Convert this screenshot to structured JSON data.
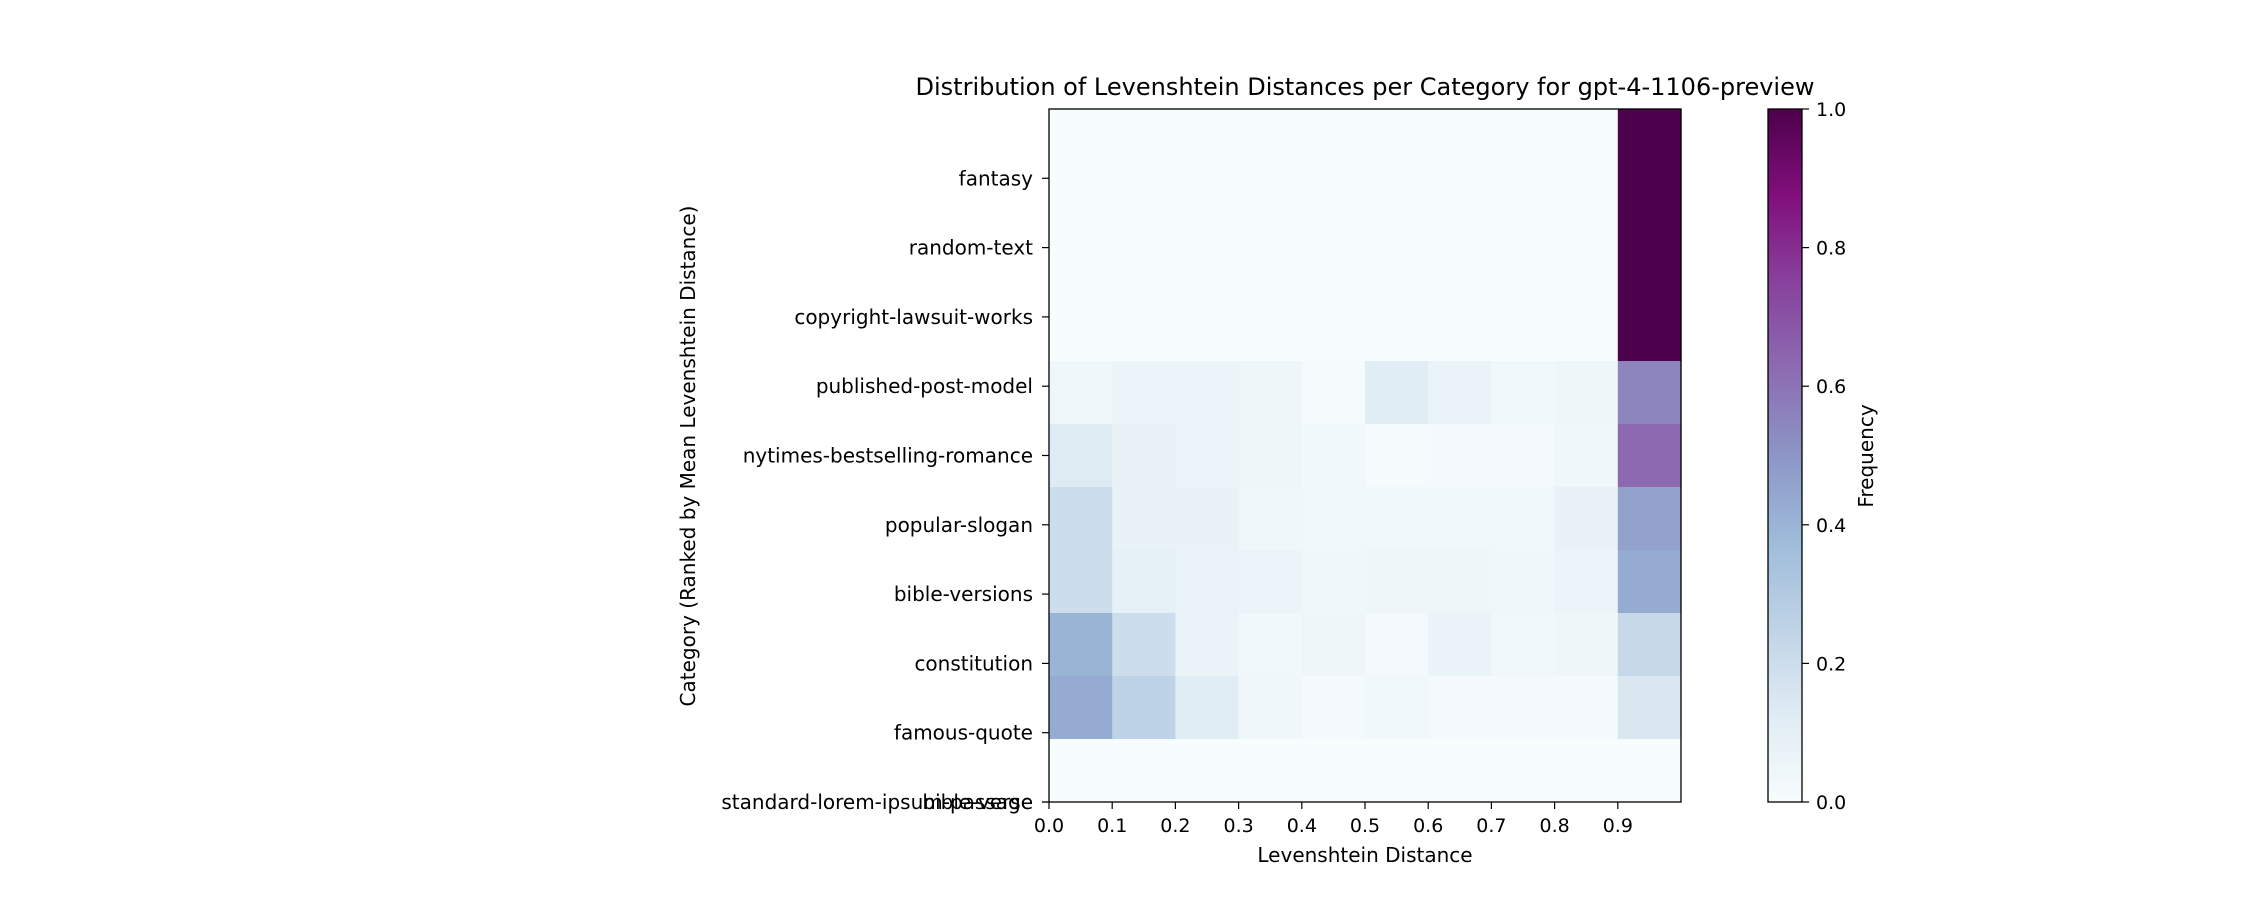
{
  "chart_data": {
    "type": "heatmap",
    "title": "Distribution of Levenshtein Distances per Category for gpt-4-1106-preview",
    "xlabel": "Levenshtein Distance",
    "ylabel": "Category (Ranked by Mean Levenshtein Distance)",
    "x_ticks": [
      "0.0",
      "0.1",
      "0.2",
      "0.3",
      "0.4",
      "0.5",
      "0.6",
      "0.7",
      "0.8",
      "0.9"
    ],
    "xlim": [
      0.0,
      1.0
    ],
    "y_categories": [
      "fantasy",
      "random-text",
      "copyright-lawsuit-works",
      "published-post-model",
      "nytimes-bestselling-romance",
      "popular-slogan",
      "bible-versions",
      "constitution",
      "famous-quote",
      "bible-verse",
      "standard-lorem-ipsum-passage"
    ],
    "grid": false,
    "colormap": "BuPu",
    "colorbar": {
      "label": "Frequency",
      "range": [
        0.0,
        1.0
      ],
      "ticks": [
        "0.0",
        "0.2",
        "0.4",
        "0.6",
        "0.8",
        "1.0"
      ]
    },
    "values": [
      [
        0.0,
        0.0,
        0.0,
        0.0,
        0.0,
        0.0,
        0.0,
        0.0,
        0.0,
        1.0
      ],
      [
        0.0,
        0.0,
        0.0,
        0.0,
        0.0,
        0.0,
        0.0,
        0.0,
        0.0,
        1.0
      ],
      [
        0.0,
        0.0,
        0.0,
        0.0,
        0.0,
        0.0,
        0.0,
        0.0,
        0.0,
        1.0
      ],
      [
        0.0,
        0.0,
        0.0,
        0.0,
        0.0,
        0.0,
        0.0,
        0.0,
        0.0,
        1.0
      ],
      [
        0.04,
        0.06,
        0.06,
        0.05,
        0.01,
        0.12,
        0.07,
        0.03,
        0.05,
        0.55
      ],
      [
        0.13,
        0.08,
        0.06,
        0.05,
        0.03,
        0.01,
        0.02,
        0.02,
        0.04,
        0.63
      ],
      [
        0.2,
        0.08,
        0.08,
        0.04,
        0.03,
        0.03,
        0.03,
        0.03,
        0.08,
        0.46
      ],
      [
        0.2,
        0.09,
        0.07,
        0.06,
        0.04,
        0.05,
        0.05,
        0.04,
        0.06,
        0.43
      ],
      [
        0.4,
        0.2,
        0.07,
        0.03,
        0.05,
        0.02,
        0.07,
        0.03,
        0.05,
        0.22
      ],
      [
        0.43,
        0.25,
        0.12,
        0.04,
        0.02,
        0.03,
        0.02,
        0.02,
        0.02,
        0.15
      ],
      [
        0.0,
        0.0,
        0.0,
        0.0,
        0.0,
        0.0,
        0.0,
        0.0,
        0.0,
        0.0
      ]
    ]
  }
}
